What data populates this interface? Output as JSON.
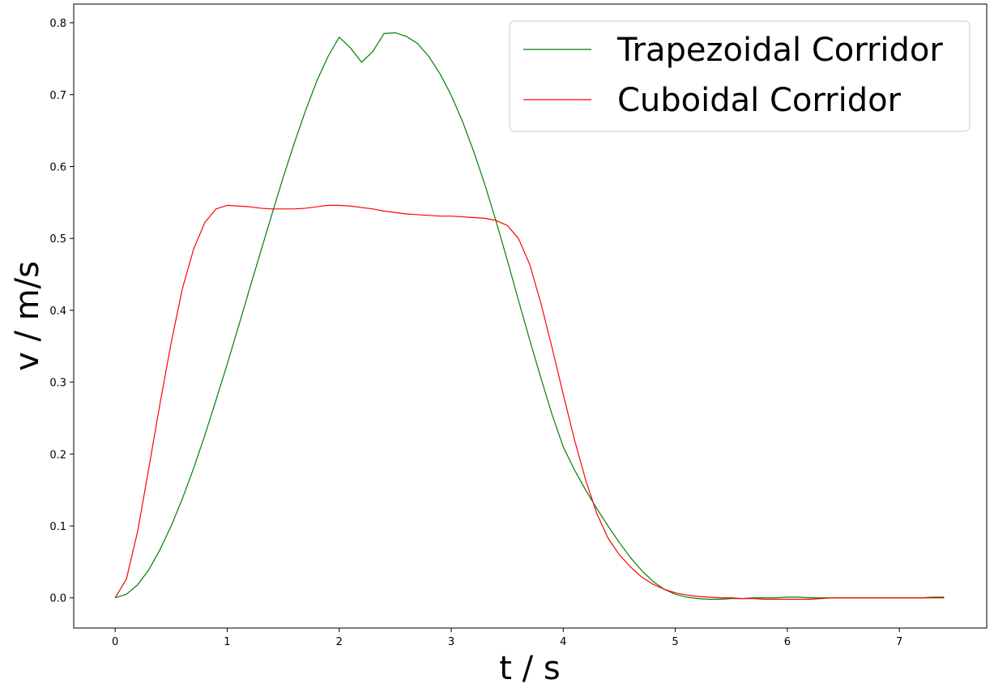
{
  "chart_data": {
    "type": "line",
    "xlabel": "t / s",
    "ylabel": "v / m/s",
    "xlim": [
      -0.37,
      7.78
    ],
    "ylim": [
      -0.042,
      0.826
    ],
    "xticks": [
      0,
      1,
      2,
      3,
      4,
      5,
      6,
      7
    ],
    "yticks": [
      0.0,
      0.1,
      0.2,
      0.3,
      0.4,
      0.5,
      0.6,
      0.7,
      0.8
    ],
    "xtick_labels": [
      "0",
      "1",
      "2",
      "3",
      "4",
      "5",
      "6",
      "7"
    ],
    "ytick_labels": [
      "0.0",
      "0.1",
      "0.2",
      "0.3",
      "0.4",
      "0.5",
      "0.6",
      "0.7",
      "0.8"
    ],
    "grid": false,
    "legend_position": "top-right",
    "series": [
      {
        "name": "Trapezoidal Corridor",
        "color": "#008000",
        "x": [
          0.0,
          0.1,
          0.2,
          0.3,
          0.4,
          0.5,
          0.6,
          0.7,
          0.8,
          0.9,
          1.0,
          1.1,
          1.2,
          1.3,
          1.4,
          1.5,
          1.6,
          1.7,
          1.8,
          1.9,
          2.0,
          2.1,
          2.2,
          2.3,
          2.4,
          2.5,
          2.6,
          2.7,
          2.8,
          2.9,
          3.0,
          3.1,
          3.2,
          3.3,
          3.4,
          3.5,
          3.6,
          3.7,
          3.8,
          3.9,
          4.0,
          4.1,
          4.2,
          4.3,
          4.4,
          4.5,
          4.6,
          4.7,
          4.8,
          4.9,
          5.0,
          5.1,
          5.2,
          5.3,
          5.4,
          5.5,
          5.6,
          5.7,
          5.8,
          5.9,
          6.0,
          6.1,
          6.2,
          6.3,
          6.4,
          6.5,
          6.6,
          6.7,
          6.8,
          6.9,
          7.0,
          7.1,
          7.2,
          7.3,
          7.4
        ],
        "y": [
          0.0,
          0.005,
          0.018,
          0.039,
          0.067,
          0.1,
          0.138,
          0.18,
          0.226,
          0.275,
          0.325,
          0.377,
          0.43,
          0.482,
          0.534,
          0.585,
          0.633,
          0.678,
          0.719,
          0.753,
          0.78,
          0.765,
          0.745,
          0.76,
          0.785,
          0.786,
          0.781,
          0.771,
          0.753,
          0.729,
          0.699,
          0.663,
          0.621,
          0.575,
          0.524,
          0.47,
          0.414,
          0.359,
          0.306,
          0.255,
          0.21,
          0.178,
          0.15,
          0.124,
          0.1,
          0.077,
          0.056,
          0.038,
          0.023,
          0.012,
          0.005,
          0.001,
          -0.001,
          -0.002,
          -0.002,
          -0.001,
          -0.001,
          0.0,
          0.0,
          0.0,
          0.001,
          0.001,
          0.0,
          0.0,
          0.0,
          0.0,
          0.0,
          0.0,
          0.0,
          0.0,
          0.0,
          0.0,
          0.0,
          0.001,
          0.001
        ]
      },
      {
        "name": "Cuboidal Corridor",
        "color": "#ff0000",
        "x": [
          0.0,
          0.1,
          0.2,
          0.3,
          0.4,
          0.5,
          0.6,
          0.7,
          0.8,
          0.9,
          1.0,
          1.1,
          1.2,
          1.3,
          1.4,
          1.5,
          1.6,
          1.7,
          1.8,
          1.9,
          2.0,
          2.1,
          2.2,
          2.3,
          2.4,
          2.5,
          2.6,
          2.7,
          2.8,
          2.9,
          3.0,
          3.1,
          3.2,
          3.3,
          3.4,
          3.5,
          3.6,
          3.7,
          3.8,
          3.9,
          4.0,
          4.1,
          4.2,
          4.3,
          4.4,
          4.5,
          4.6,
          4.7,
          4.8,
          4.9,
          5.0,
          5.1,
          5.2,
          5.3,
          5.4,
          5.5,
          5.6,
          5.7,
          5.8,
          5.9,
          6.0,
          6.1,
          6.2,
          6.3,
          6.4,
          6.5,
          6.6,
          6.7,
          6.8,
          6.9,
          7.0,
          7.1,
          7.2,
          7.3,
          7.4
        ],
        "y": [
          0.0,
          0.026,
          0.092,
          0.18,
          0.27,
          0.355,
          0.43,
          0.485,
          0.522,
          0.541,
          0.546,
          0.545,
          0.544,
          0.542,
          0.541,
          0.541,
          0.541,
          0.542,
          0.544,
          0.546,
          0.546,
          0.545,
          0.543,
          0.541,
          0.538,
          0.536,
          0.534,
          0.533,
          0.532,
          0.531,
          0.531,
          0.53,
          0.529,
          0.528,
          0.525,
          0.518,
          0.5,
          0.464,
          0.41,
          0.348,
          0.283,
          0.22,
          0.164,
          0.117,
          0.083,
          0.06,
          0.043,
          0.029,
          0.019,
          0.012,
          0.007,
          0.004,
          0.002,
          0.001,
          0.0,
          0.0,
          -0.001,
          -0.001,
          -0.002,
          -0.002,
          -0.002,
          -0.002,
          -0.002,
          -0.001,
          0.0,
          0.0,
          0.0,
          0.0,
          0.0,
          0.0,
          0.0,
          0.0,
          0.0,
          0.0,
          0.0
        ]
      }
    ]
  }
}
